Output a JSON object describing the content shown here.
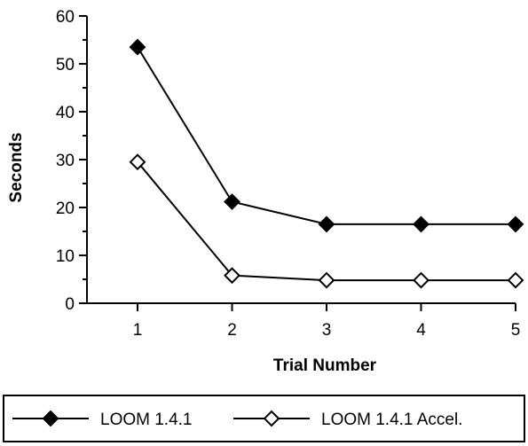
{
  "chart_data": {
    "type": "line",
    "xlabel": "Trial Number",
    "ylabel": "Seconds",
    "x": [
      1,
      2,
      3,
      4,
      5
    ],
    "ylim": [
      0,
      60
    ],
    "yticks": [
      "0",
      "10",
      "20",
      "30",
      "40",
      "50",
      "60"
    ],
    "xticks": [
      "1",
      "2",
      "3",
      "4",
      "5"
    ],
    "grid": false,
    "legend_position": "bottom",
    "series": [
      {
        "name": "LOOM 1.4.1",
        "values": [
          53.5,
          21.2,
          16.5,
          16.5,
          16.5
        ],
        "marker": "filled-diamond",
        "color": "#000000"
      },
      {
        "name": "LOOM 1.4.1 Accel.",
        "values": [
          29.5,
          5.8,
          4.8,
          4.8,
          4.8
        ],
        "marker": "open-diamond",
        "color": "#000000"
      }
    ]
  }
}
